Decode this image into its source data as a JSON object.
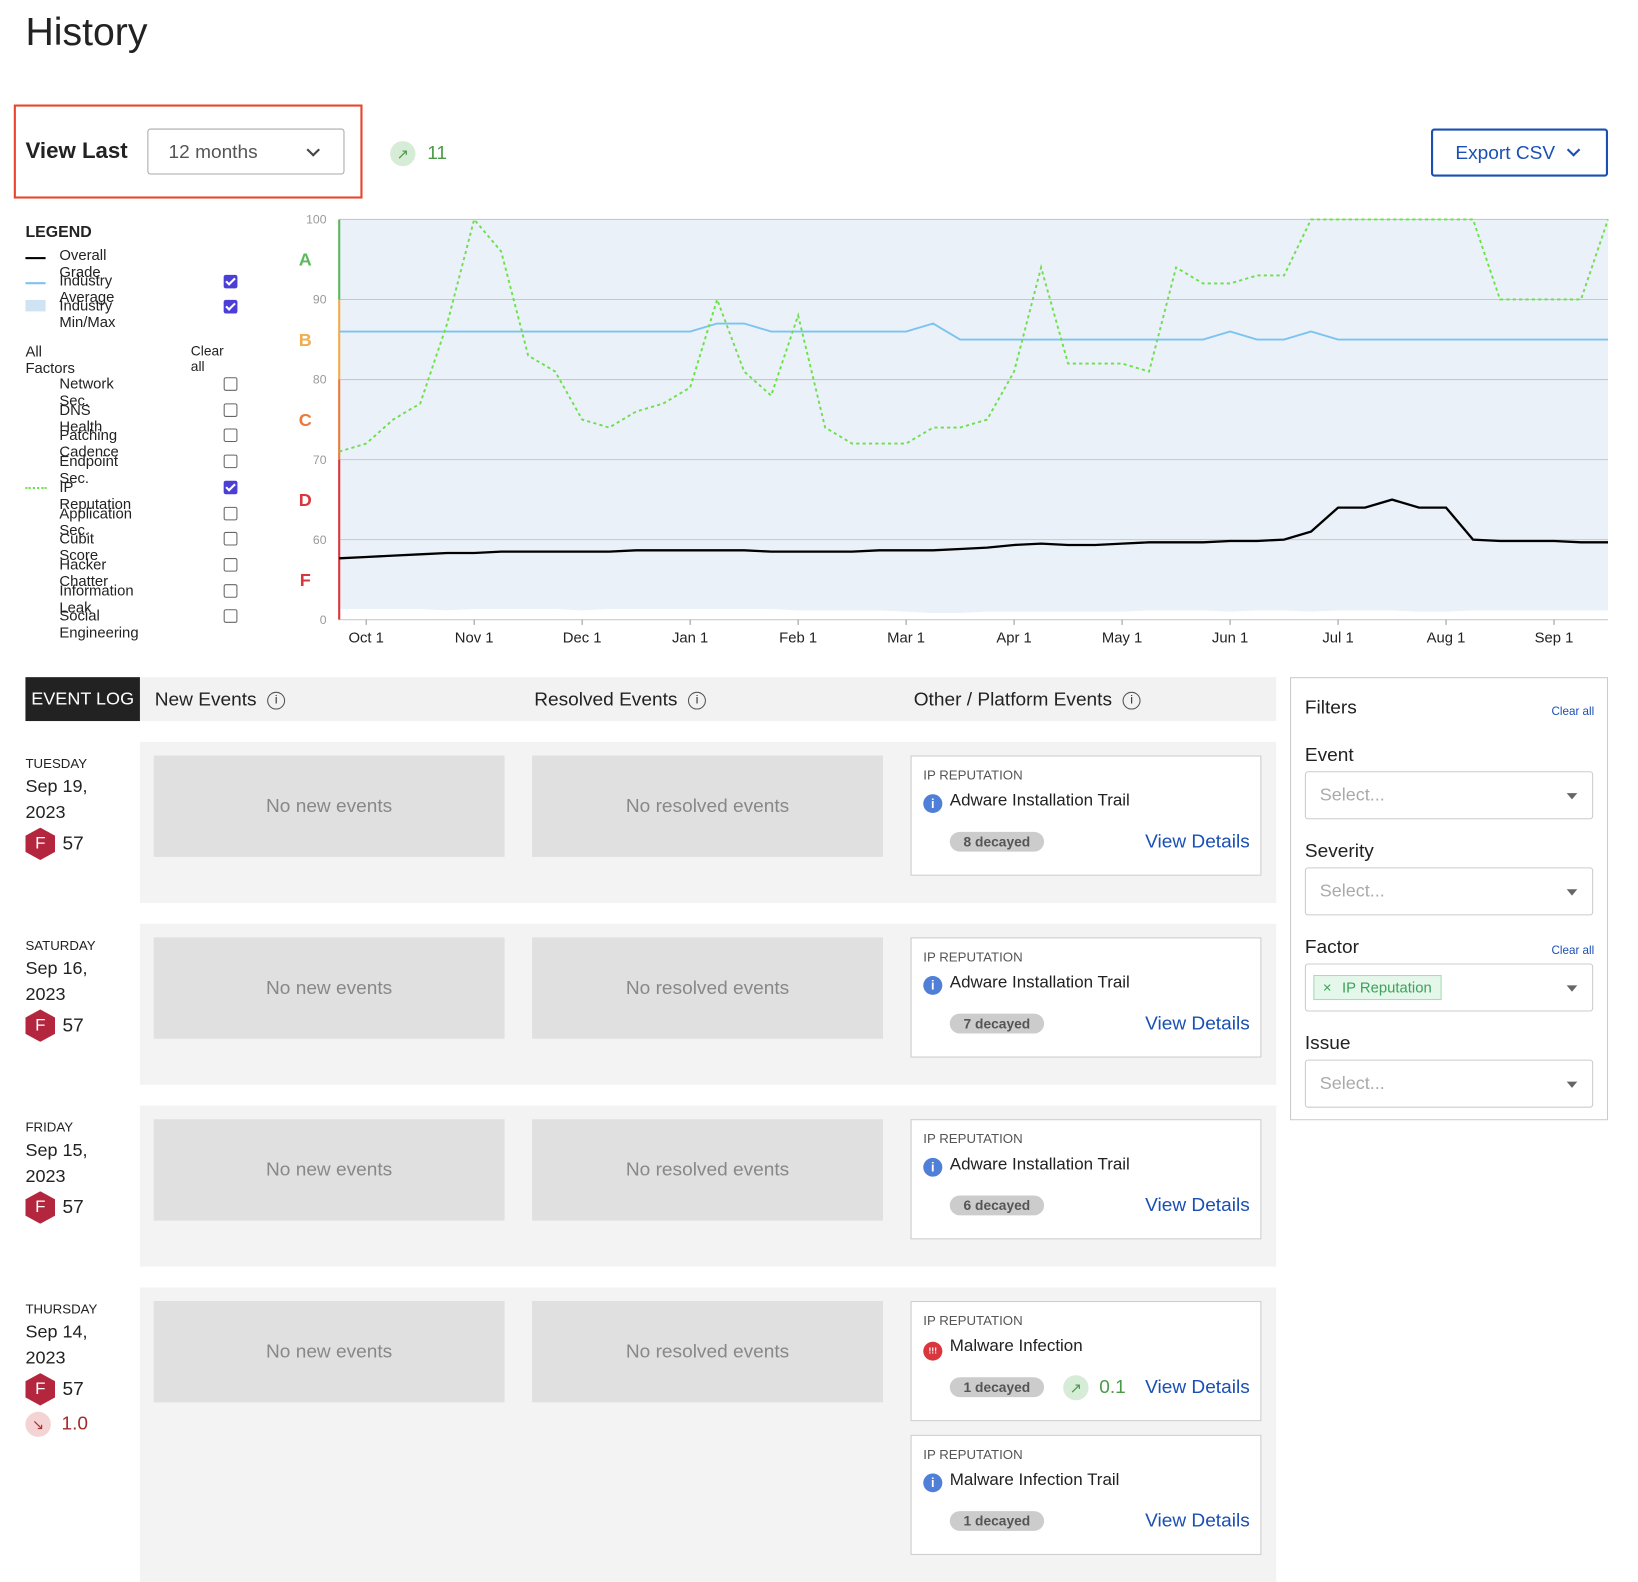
{
  "header": {
    "title": "History"
  },
  "view_last": {
    "label": "View Last",
    "selected": "12 months",
    "trend": "11"
  },
  "export": {
    "label": "Export CSV"
  },
  "legend": {
    "title": "LEGEND",
    "checked": [
      null,
      true,
      true
    ],
    "factors_title": "All Factors",
    "clear": "Clear all",
    "factors": [
      {
        "label": "Network Sec.",
        "checked": false
      },
      {
        "label": "DNS Health",
        "checked": false
      },
      {
        "label": "Patching Cadence",
        "checked": false
      },
      {
        "label": "Endpoint Sec.",
        "checked": false
      },
      {
        "label": "IP Reputation",
        "checked": true
      },
      {
        "label": "Application Sec.",
        "checked": false
      },
      {
        "label": "Cubit Score",
        "checked": false
      },
      {
        "label": "Hacker Chatter",
        "checked": false
      },
      {
        "label": "Information Leak",
        "checked": false
      },
      {
        "label": "Social Engineering",
        "checked": false
      }
    ]
  },
  "chart_data": {
    "type": "line",
    "x": [
      null,
      "Oct 1",
      null,
      null,
      null,
      "Nov 1",
      null,
      null,
      null,
      "Dec 1",
      null,
      null,
      null,
      "Jan 1",
      null,
      null,
      null,
      "Feb 1",
      null,
      null,
      null,
      "Mar 1",
      null,
      null,
      null,
      "Apr 1",
      null,
      null,
      null,
      "May 1",
      null,
      null,
      null,
      "Jun 1",
      null,
      null,
      null,
      "Jul 1",
      null,
      null,
      null,
      "Aug 1",
      null,
      null,
      null,
      "Sep 1",
      null,
      null
    ],
    "ylim": [
      0,
      100
    ],
    "yticks": [
      0,
      60,
      70,
      80,
      90,
      100
    ],
    "grid": true,
    "grades": [
      {
        "label": "A",
        "color": "#5cb85c"
      },
      {
        "label": "B",
        "color": "#f0ad4e"
      },
      {
        "label": "C",
        "color": "#ec7a3c"
      },
      {
        "label": "D",
        "color": "#d9363e"
      },
      {
        "label": "F",
        "color": "#d9363e"
      }
    ],
    "band": {
      "name": "Industry Min/Max",
      "color": "#eaf1f9",
      "min": [
        8,
        8,
        8,
        8,
        7,
        8,
        8,
        8,
        8,
        7,
        8,
        8,
        8,
        8,
        8,
        8,
        8,
        7,
        7,
        7,
        7,
        6,
        5,
        5,
        6,
        6,
        6,
        6,
        6,
        6,
        7,
        7,
        7,
        6,
        7,
        7,
        6,
        7,
        7,
        7,
        6,
        6,
        7,
        7,
        7,
        7,
        7,
        7
      ],
      "max": [
        100,
        100,
        100,
        100,
        100,
        100,
        100,
        100,
        100,
        100,
        100,
        100,
        100,
        100,
        100,
        100,
        100,
        100,
        100,
        100,
        100,
        100,
        100,
        100,
        100,
        100,
        100,
        100,
        100,
        100,
        100,
        100,
        100,
        100,
        100,
        100,
        100,
        100,
        100,
        100,
        100,
        100,
        100,
        100,
        100,
        100,
        100,
        100
      ]
    },
    "series": [
      {
        "name": "Overall Grade",
        "color": "#000000",
        "values": [
          46,
          47,
          48,
          49,
          50,
          50,
          51,
          51,
          51,
          51,
          51,
          52,
          52,
          52,
          52,
          52,
          51,
          51,
          51,
          51,
          52,
          52,
          52,
          53,
          54,
          56,
          57,
          56,
          56,
          57,
          58,
          58,
          58,
          59,
          59,
          60,
          61,
          64,
          64,
          65,
          64,
          64,
          60,
          59,
          59,
          59,
          58,
          58
        ]
      },
      {
        "name": "Industry Average",
        "color": "#7cc4f0",
        "values": [
          86,
          86,
          86,
          86,
          86,
          86,
          86,
          86,
          86,
          86,
          86,
          86,
          86,
          86,
          87,
          87,
          86,
          86,
          86,
          86,
          86,
          86,
          87,
          85,
          85,
          85,
          85,
          85,
          85,
          85,
          85,
          85,
          85,
          86,
          85,
          85,
          86,
          85,
          85,
          85,
          85,
          85,
          85,
          85,
          85,
          85,
          85,
          85
        ]
      },
      {
        "name": "IP Reputation",
        "color": "#6be04a",
        "dashed": true,
        "values": [
          71,
          72,
          75,
          77,
          87,
          100,
          96,
          83,
          81,
          75,
          74,
          76,
          77,
          79,
          90,
          81,
          78,
          88,
          74,
          72,
          72,
          72,
          74,
          74,
          75,
          81,
          94,
          82,
          82,
          82,
          81,
          94,
          92,
          92,
          93,
          93,
          100,
          100,
          100,
          100,
          100,
          100,
          100,
          90,
          90,
          90,
          90,
          100
        ]
      }
    ]
  },
  "event_log": {
    "title": "EVENT LOG",
    "columns": [
      "New Events",
      "Resolved Events",
      "Other / Platform Events"
    ],
    "days": [
      {
        "weekday": "TUESDAY",
        "date": "Sep 19, 2023",
        "grade": "F",
        "score": 57,
        "new": "No new events",
        "resolved": "No resolved events",
        "events": [
          {
            "factor": "IP REPUTATION",
            "severity": "info",
            "title": "Adware Installation Trail",
            "decayed": "8 decayed",
            "link": "View Details"
          }
        ]
      },
      {
        "weekday": "SATURDAY",
        "date": "Sep 16, 2023",
        "grade": "F",
        "score": 57,
        "new": "No new events",
        "resolved": "No resolved events",
        "events": [
          {
            "factor": "IP REPUTATION",
            "severity": "info",
            "title": "Adware Installation Trail",
            "decayed": "7 decayed",
            "link": "View Details"
          }
        ]
      },
      {
        "weekday": "FRIDAY",
        "date": "Sep 15, 2023",
        "grade": "F",
        "score": 57,
        "new": "No new events",
        "resolved": "No resolved events",
        "events": [
          {
            "factor": "IP REPUTATION",
            "severity": "info",
            "title": "Adware Installation Trail",
            "decayed": "6 decayed",
            "link": "View Details"
          }
        ]
      },
      {
        "weekday": "THURSDAY",
        "date": "Sep 14, 2023",
        "grade": "F",
        "score": 57,
        "change": "1.0",
        "new": "No new events",
        "resolved": "No resolved events",
        "events": [
          {
            "factor": "IP REPUTATION",
            "severity": "high",
            "title": "Malware Infection",
            "decayed": "1 decayed",
            "trend": "0.1",
            "link": "View Details"
          },
          {
            "factor": "IP REPUTATION",
            "severity": "info",
            "title": "Malware Infection Trail",
            "decayed": "1 decayed",
            "link": "View Details"
          }
        ]
      }
    ]
  },
  "filters": {
    "title": "Filters",
    "clear": "Clear all",
    "fields": [
      {
        "label": "Event",
        "placeholder": "Select..."
      },
      {
        "label": "Severity",
        "placeholder": "Select..."
      },
      {
        "label": "Factor",
        "clear": "Clear all",
        "tag": "IP Reputation"
      },
      {
        "label": "Issue",
        "placeholder": "Select..."
      }
    ]
  }
}
